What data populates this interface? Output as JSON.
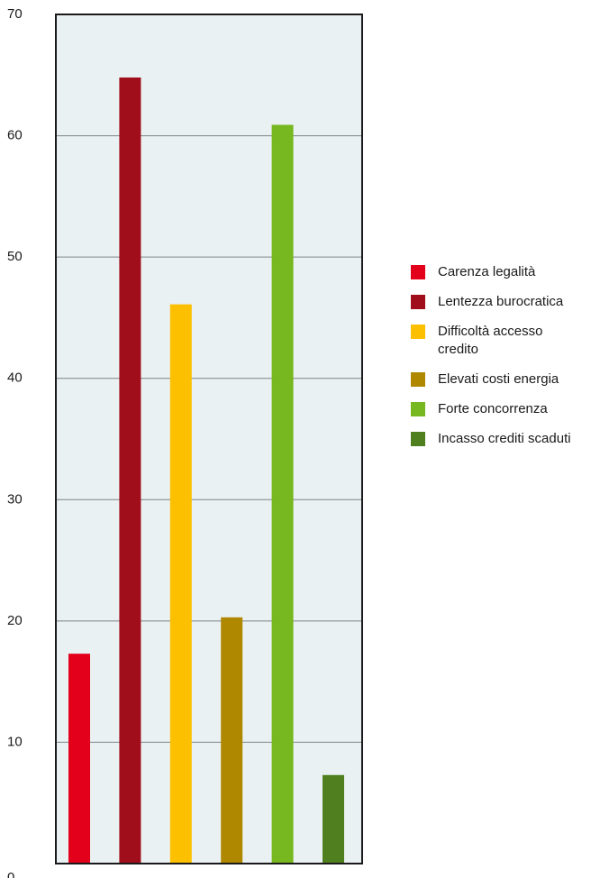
{
  "chart_data": {
    "type": "bar",
    "categories": [
      "Carenza legalità",
      "Lentezza burocratica",
      "Difficoltà accesso credito",
      "Elevati costi energia",
      "Forte concorrenza",
      "Incasso crediti scaduti"
    ],
    "values": [
      17.3,
      64.8,
      46.1,
      20.3,
      60.9,
      7.3
    ],
    "colors": [
      "#e2001a",
      "#a00d1b",
      "#fcc000",
      "#b08800",
      "#77b71f",
      "#4f7f1f"
    ],
    "ylim": [
      0,
      70
    ],
    "yticks": [
      0,
      10,
      20,
      30,
      40,
      50,
      60,
      70
    ],
    "grid": true,
    "legend_position": "right",
    "plot_background": "#eaf1f3",
    "title": "",
    "xlabel": "",
    "ylabel": ""
  },
  "legend": {
    "items": [
      {
        "label": "Carenza legalità",
        "color": "#e2001a"
      },
      {
        "label": "Lentezza burocratica",
        "color": "#a00d1b"
      },
      {
        "label": "Difficoltà accesso credito",
        "color": "#fcc000"
      },
      {
        "label": "Elevati costi energia",
        "color": "#b08800"
      },
      {
        "label": "Forte concorrenza",
        "color": "#77b71f"
      },
      {
        "label": "Incasso crediti scaduti",
        "color": "#4f7f1f"
      }
    ]
  }
}
